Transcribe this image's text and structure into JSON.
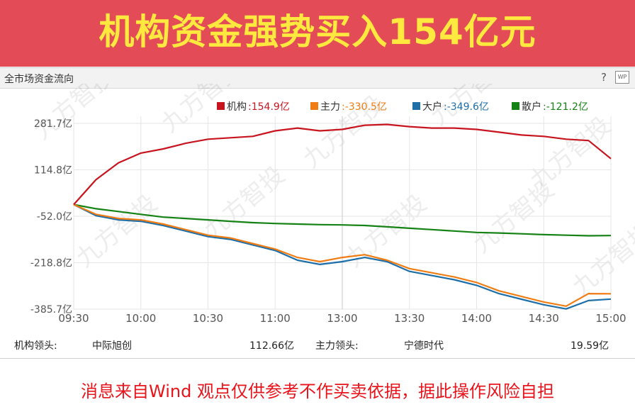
{
  "banner": {
    "title": "机构资金强势买入154亿元"
  },
  "panel": {
    "title": "全市场资金流向",
    "help": "?",
    "wp_label": "WP"
  },
  "watermark": "九方智投",
  "footer": {
    "inst_label": "机构领头:",
    "inst_name": "中际旭创",
    "inst_value": "112.66亿",
    "main_label": "主力领头:",
    "main_name": "宁德时代",
    "main_value": "19.59亿"
  },
  "disclaimer": "消息来自Wind  观点仅供参考不作买卖依据，据此操作风险自担",
  "chart_data": {
    "type": "line",
    "title": "",
    "xlabel": "",
    "ylabel": "",
    "y_ticks": [
      "281.7亿",
      "114.8亿",
      "-52.0亿",
      "-218.8亿",
      "-385.7亿"
    ],
    "y_tick_values": [
      281.7,
      114.8,
      -52.0,
      -218.8,
      -385.7
    ],
    "ylim": [
      -385.7,
      281.7
    ],
    "x_ticks": [
      "09:30",
      "10:00",
      "10:30",
      "11:00",
      "13:00",
      "13:30",
      "14:00",
      "14:30",
      "15:00"
    ],
    "legend_position": "top-right",
    "x": [
      "09:30",
      "09:40",
      "09:50",
      "10:00",
      "10:10",
      "10:20",
      "10:30",
      "10:40",
      "10:50",
      "11:00",
      "11:10",
      "11:20",
      "11:30/13:00",
      "13:10",
      "13:20",
      "13:30",
      "13:40",
      "13:50",
      "14:00",
      "14:10",
      "14:20",
      "14:30",
      "14:40",
      "14:50",
      "15:00"
    ],
    "series": [
      {
        "name": "机构",
        "legend_value": ":154.9亿",
        "color": "#c8141e",
        "values": [
          -10,
          80,
          140,
          175,
          190,
          210,
          225,
          230,
          235,
          255,
          265,
          255,
          260,
          275,
          278,
          270,
          265,
          265,
          260,
          250,
          240,
          235,
          225,
          220,
          154.9
        ]
      },
      {
        "name": "主力",
        "legend_value": ":-330.5亿",
        "color": "#f07d14",
        "values": [
          -10,
          -45,
          -60,
          -65,
          -80,
          -100,
          -120,
          -130,
          -150,
          -170,
          -200,
          -215,
          -200,
          -190,
          -210,
          -240,
          -255,
          -270,
          -290,
          -320,
          -340,
          -360,
          -375,
          -330,
          -330.5
        ]
      },
      {
        "name": "大户",
        "legend_value": ":-349.6亿",
        "color": "#1e6ea8",
        "values": [
          -10,
          -50,
          -65,
          -70,
          -85,
          -105,
          -125,
          -135,
          -155,
          -175,
          -210,
          -225,
          -215,
          -200,
          -215,
          -250,
          -265,
          -280,
          -300,
          -330,
          -350,
          -370,
          -385,
          -355,
          -349.6
        ]
      },
      {
        "name": "散户",
        "legend_value": ":-121.2亿",
        "color": "#148214",
        "values": [
          -10,
          -25,
          -35,
          -45,
          -55,
          -60,
          -65,
          -70,
          -75,
          -78,
          -80,
          -82,
          -83,
          -85,
          -90,
          -95,
          -100,
          -105,
          -110,
          -112,
          -115,
          -118,
          -120,
          -122,
          -121.2
        ]
      }
    ]
  }
}
